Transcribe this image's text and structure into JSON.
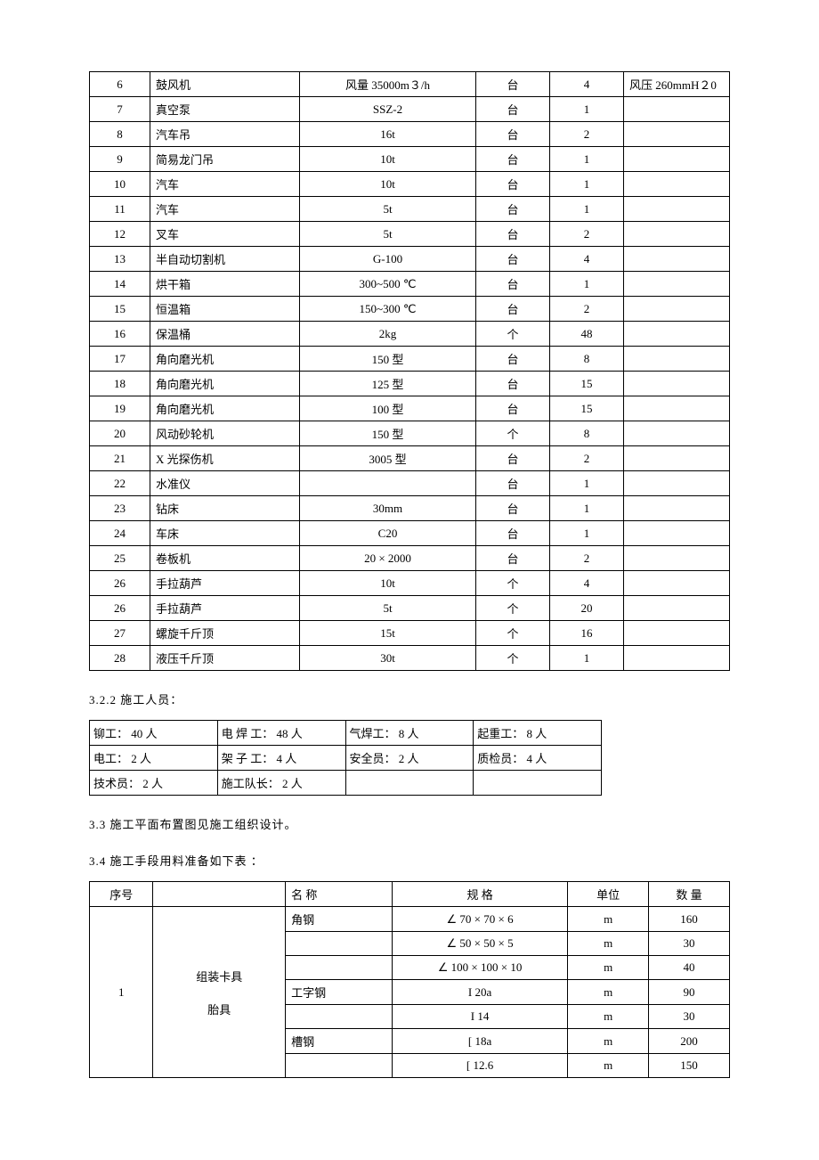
{
  "table1": {
    "rows": [
      {
        "n": "6",
        "name": "鼓风机",
        "spec": "风量 35000m３/h",
        "unit": "台",
        "qty": "4",
        "remark": "风压 260mmH２0"
      },
      {
        "n": "7",
        "name": "真空泵",
        "spec": "SSZ-2",
        "unit": "台",
        "qty": "1",
        "remark": ""
      },
      {
        "n": "8",
        "name": "汽车吊",
        "spec": "16t",
        "unit": "台",
        "qty": "2",
        "remark": ""
      },
      {
        "n": "9",
        "name": "简易龙门吊",
        "spec": "10t",
        "unit": "台",
        "qty": "1",
        "remark": ""
      },
      {
        "n": "10",
        "name": "汽车",
        "spec": "10t",
        "unit": "台",
        "qty": "1",
        "remark": ""
      },
      {
        "n": "11",
        "name": "汽车",
        "spec": "5t",
        "unit": "台",
        "qty": "1",
        "remark": ""
      },
      {
        "n": "12",
        "name": "叉车",
        "spec": "5t",
        "unit": "台",
        "qty": "2",
        "remark": ""
      },
      {
        "n": "13",
        "name": "半自动切割机",
        "spec": "G-100",
        "unit": "台",
        "qty": "4",
        "remark": ""
      },
      {
        "n": "14",
        "name": "烘干箱",
        "spec": "300~500 ℃",
        "unit": "台",
        "qty": "1",
        "remark": ""
      },
      {
        "n": "15",
        "name": "恒温箱",
        "spec": "150~300 ℃",
        "unit": "台",
        "qty": "2",
        "remark": ""
      },
      {
        "n": "16",
        "name": "保温桶",
        "spec": "2kg",
        "unit": "个",
        "qty": "48",
        "remark": ""
      },
      {
        "n": "17",
        "name": "角向磨光机",
        "spec": "150 型",
        "unit": "台",
        "qty": "8",
        "remark": ""
      },
      {
        "n": "18",
        "name": "角向磨光机",
        "spec": "125 型",
        "unit": "台",
        "qty": "15",
        "remark": ""
      },
      {
        "n": "19",
        "name": "角向磨光机",
        "spec": "100 型",
        "unit": "台",
        "qty": "15",
        "remark": ""
      },
      {
        "n": "20",
        "name": "风动砂轮机",
        "spec": "150 型",
        "unit": "个",
        "qty": "8",
        "remark": ""
      },
      {
        "n": "21",
        "name": "X 光探伤机",
        "spec": "3005 型",
        "unit": "台",
        "qty": "2",
        "remark": ""
      },
      {
        "n": "22",
        "name": "水准仪",
        "spec": "",
        "unit": "台",
        "qty": "1",
        "remark": ""
      },
      {
        "n": "23",
        "name": "钻床",
        "spec": "30mm",
        "unit": "台",
        "qty": "1",
        "remark": ""
      },
      {
        "n": "24",
        "name": "车床",
        "spec": "C20",
        "unit": "台",
        "qty": "1",
        "remark": ""
      },
      {
        "n": "25",
        "name": "卷板机",
        "spec": "20 × 2000",
        "unit": "台",
        "qty": "2",
        "remark": ""
      },
      {
        "n": "26",
        "name": "手拉葫芦",
        "spec": "10t",
        "unit": "个",
        "qty": "4",
        "remark": ""
      },
      {
        "n": "26",
        "name": "手拉葫芦",
        "spec": "5t",
        "unit": "个",
        "qty": "20",
        "remark": ""
      },
      {
        "n": "27",
        "name": "螺旋千斤顶",
        "spec": "15t",
        "unit": "个",
        "qty": "16",
        "remark": ""
      },
      {
        "n": "28",
        "name": "液压千斤顶",
        "spec": "30t",
        "unit": "个",
        "qty": "1",
        "remark": ""
      }
    ]
  },
  "section322": "3.2.2 施工人员：",
  "table2": {
    "rows": [
      [
        "铆工： 40 人",
        "电 焊 工： 48 人",
        "气焊工： 8 人",
        "起重工： 8 人"
      ],
      [
        "电工： 2 人",
        "架 子 工： 4 人",
        "安全员： 2 人",
        "质检员： 4 人"
      ],
      [
        "技术员： 2 人",
        "施工队长： 2 人",
        "",
        ""
      ]
    ]
  },
  "section33": "3.3 施工平面布置图见施工组织设计。",
  "section34": "3.4 施工手段用料准备如下表 ：",
  "table3": {
    "header": {
      "c1": "序号",
      "c2": "",
      "c3": "名 称",
      "c4": "规 格",
      "c5": "单位",
      "c6": "数 量"
    },
    "group": {
      "n": "1",
      "label1": "组装卡具",
      "label2": "胎具"
    },
    "rows": [
      {
        "name": "角钢",
        "spec": "∠ 70 × 70 × 6",
        "unit": "m",
        "qty": "160"
      },
      {
        "name": "",
        "spec": "∠ 50 × 50 × 5",
        "unit": "m",
        "qty": "30"
      },
      {
        "name": "",
        "spec": "∠ 100 × 100 × 10",
        "unit": "m",
        "qty": "40"
      },
      {
        "name": "工字钢",
        "spec": "I 20a",
        "unit": "m",
        "qty": "90"
      },
      {
        "name": "",
        "spec": "I 14",
        "unit": "m",
        "qty": "30"
      },
      {
        "name": "槽钢",
        "spec": "[ 18a",
        "unit": "m",
        "qty": "200"
      },
      {
        "name": "",
        "spec": "[ 12.6",
        "unit": "m",
        "qty": "150"
      }
    ]
  }
}
